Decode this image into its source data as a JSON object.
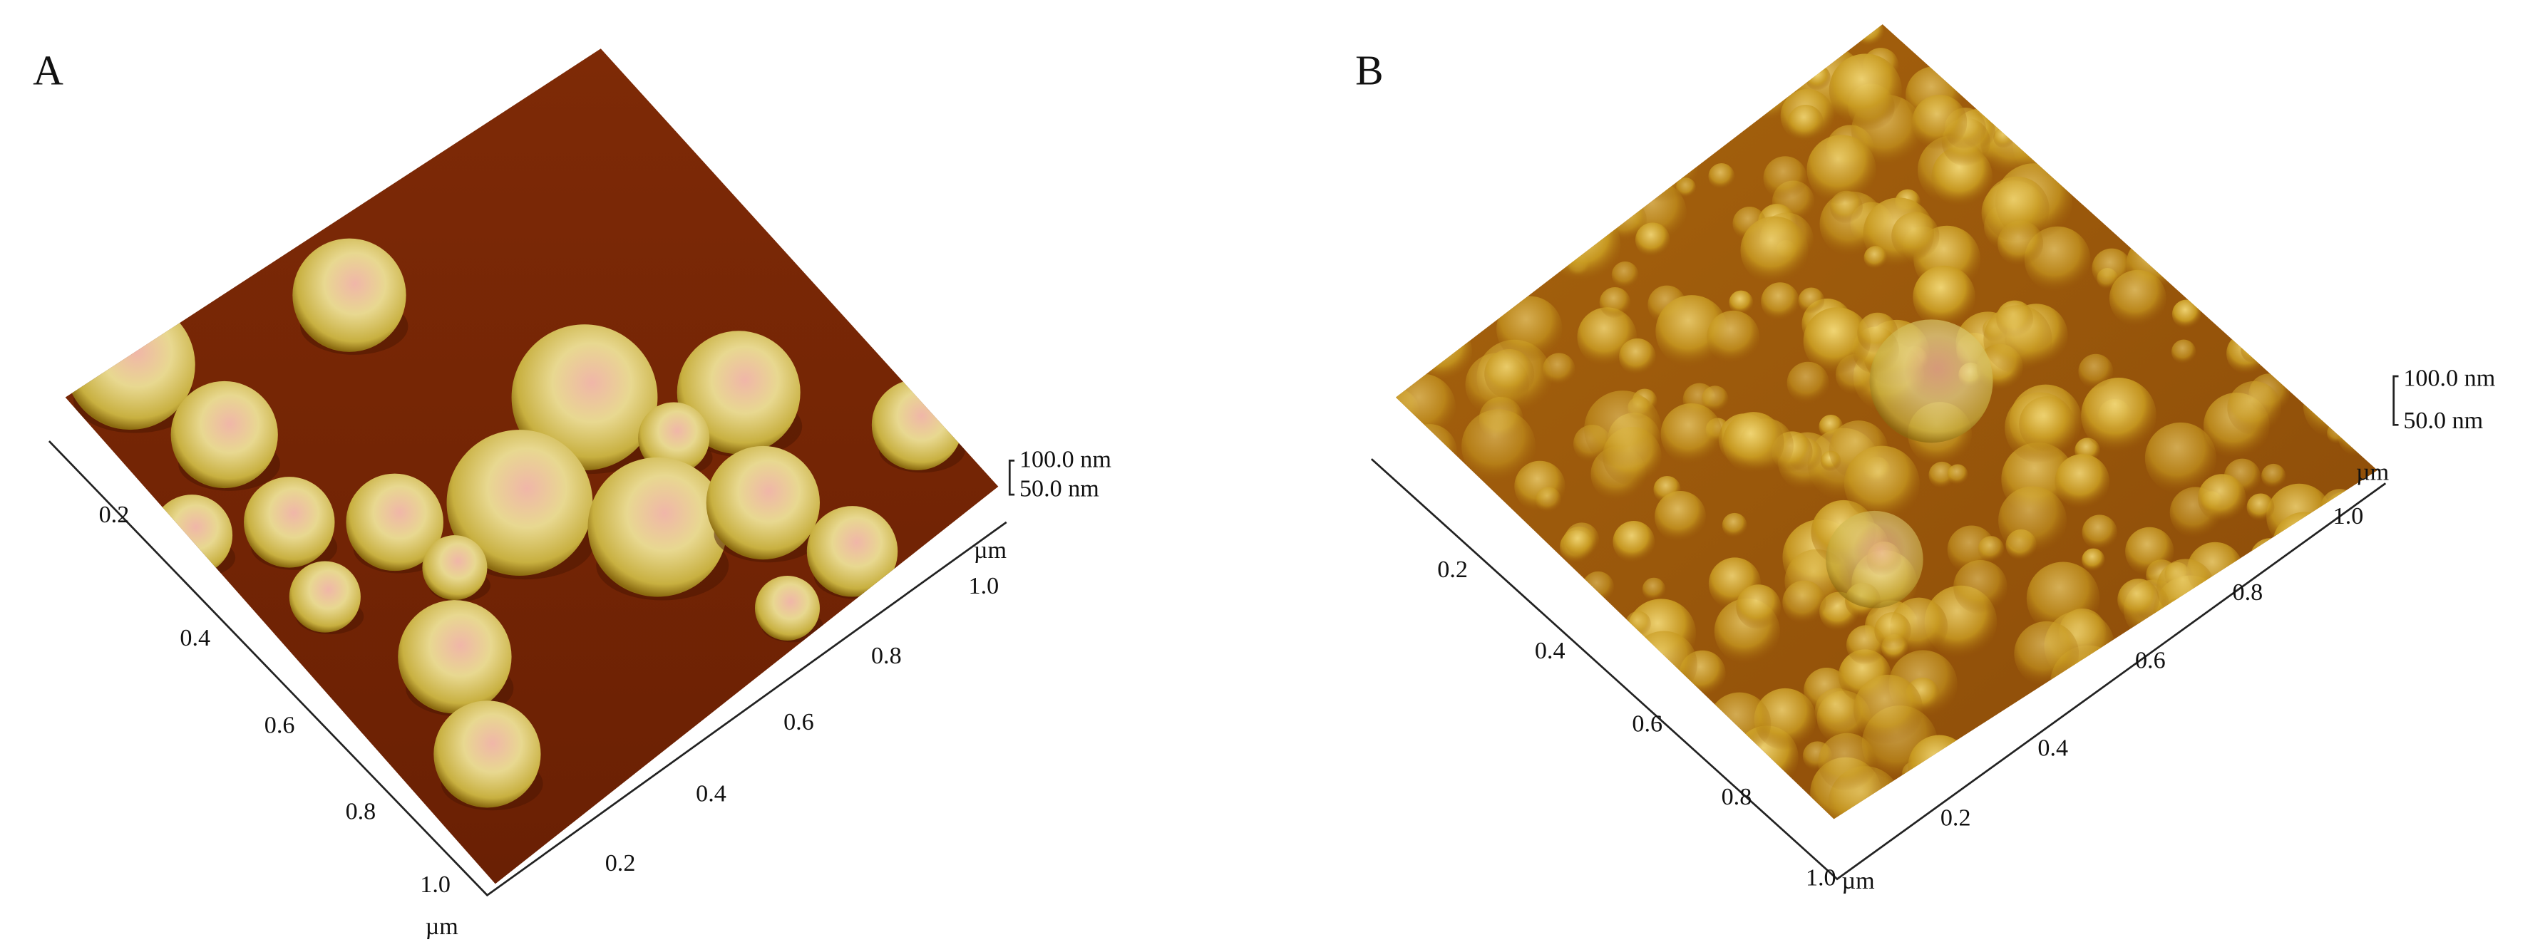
{
  "panels": [
    {
      "label": "A",
      "z_ticks": [
        "100.0 nm",
        "50.0 nm"
      ],
      "left_axis": {
        "ticks": [
          "0.2",
          "0.4",
          "0.6",
          "0.8",
          "1.0"
        ],
        "unit": "µm"
      },
      "right_axis": {
        "ticks": [
          "0.2",
          "0.4",
          "0.6",
          "0.8",
          "1.0"
        ],
        "unit": "µm"
      }
    },
    {
      "label": "B",
      "z_ticks": [
        "100.0 nm",
        "50.0 nm"
      ],
      "left_axis": {
        "ticks": [
          "0.2",
          "0.4",
          "0.6",
          "0.8",
          "1.0"
        ],
        "unit": "µm"
      },
      "right_axis": {
        "ticks": [
          "0.2",
          "0.4",
          "0.6",
          "0.8",
          "1.0"
        ],
        "unit": "µm"
      }
    }
  ]
}
